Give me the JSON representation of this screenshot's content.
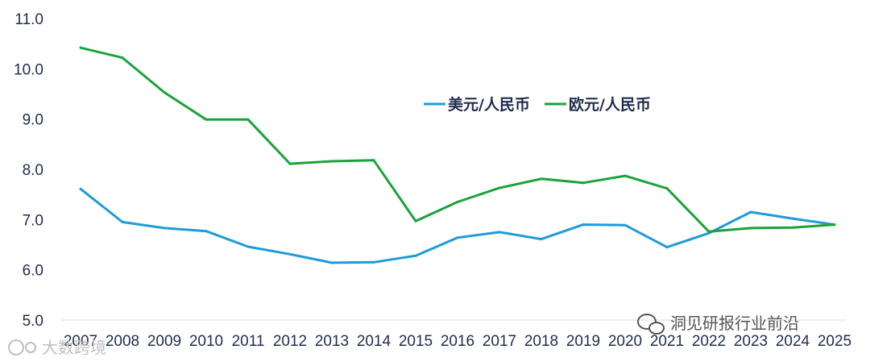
{
  "chart_data": {
    "type": "line",
    "x": [
      "2007",
      "2008",
      "2009",
      "2010",
      "2011",
      "2012",
      "2013",
      "2014",
      "2015",
      "2016",
      "2017",
      "2018",
      "2019",
      "2020",
      "2021",
      "2022",
      "2023",
      "2024",
      "2025"
    ],
    "series": [
      {
        "name": "美元/人民币",
        "color": "#1f9bd7",
        "values": [
          7.61,
          6.95,
          6.83,
          6.77,
          6.46,
          6.31,
          6.14,
          6.15,
          6.28,
          6.64,
          6.75,
          6.61,
          6.9,
          6.89,
          6.45,
          6.73,
          7.15,
          7.02,
          6.9
        ]
      },
      {
        "name": "欧元/人民币",
        "color": "#1aa33a",
        "values": [
          10.42,
          10.22,
          9.53,
          8.99,
          8.99,
          8.11,
          8.16,
          8.18,
          6.97,
          7.35,
          7.63,
          7.81,
          7.73,
          7.87,
          7.62,
          6.76,
          6.83,
          6.84,
          6.9
        ]
      }
    ],
    "ylim": [
      5.0,
      11.0
    ],
    "yticks": [
      "5.0",
      "6.0",
      "7.0",
      "8.0",
      "9.0",
      "10.0",
      "11.0"
    ],
    "grid": false,
    "legend_position": "upper-right-center",
    "title": "",
    "xlabel": "",
    "ylabel": ""
  },
  "watermarks": {
    "left": "大数跨境",
    "right": "洞见研报行业前沿"
  }
}
